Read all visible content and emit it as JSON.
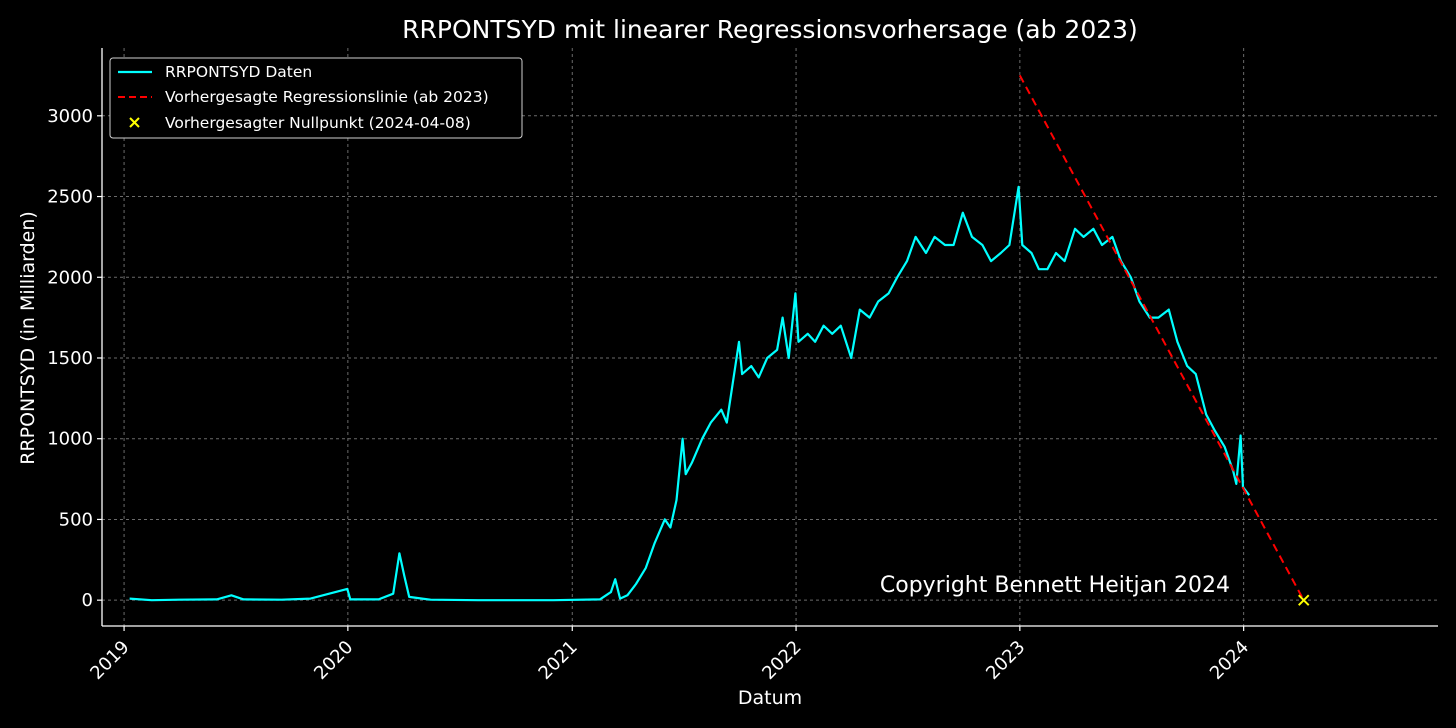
{
  "chart_data": {
    "type": "line",
    "title": "RRPONTSYD mit linearer Regressionsvorhersage (ab 2023)",
    "xlabel": "Datum",
    "ylabel": "RRPONTSYD (in Milliarden)",
    "xlim": [
      "2018-11-26",
      "2024-11-13"
    ],
    "ylim": [
      -160,
      3420
    ],
    "grid": true,
    "xticks": [
      "2019",
      "2020",
      "2021",
      "2022",
      "2023",
      "2024"
    ],
    "yticks": [
      0,
      500,
      1000,
      1500,
      2000,
      2500,
      3000
    ],
    "legend_position": "top-left",
    "series": [
      {
        "name": "RRPONTSYD Daten",
        "style": "line",
        "color": "#00FFFF",
        "points": [
          [
            "2019-01-10",
            10
          ],
          [
            "2019-02-15",
            0
          ],
          [
            "2019-04-01",
            3
          ],
          [
            "2019-06-01",
            5
          ],
          [
            "2019-06-25",
            30
          ],
          [
            "2019-07-15",
            5
          ],
          [
            "2019-09-15",
            3
          ],
          [
            "2019-11-01",
            10
          ],
          [
            "2019-12-31",
            70
          ],
          [
            "2020-01-05",
            5
          ],
          [
            "2020-02-20",
            5
          ],
          [
            "2020-03-15",
            40
          ],
          [
            "2020-03-25",
            290
          ],
          [
            "2020-04-02",
            150
          ],
          [
            "2020-04-10",
            20
          ],
          [
            "2020-05-01",
            10
          ],
          [
            "2020-05-15",
            3
          ],
          [
            "2020-08-01",
            0
          ],
          [
            "2020-12-01",
            0
          ],
          [
            "2021-02-15",
            5
          ],
          [
            "2021-03-05",
            50
          ],
          [
            "2021-03-12",
            130
          ],
          [
            "2021-03-20",
            10
          ],
          [
            "2021-04-01",
            30
          ],
          [
            "2021-04-15",
            100
          ],
          [
            "2021-05-01",
            200
          ],
          [
            "2021-05-15",
            350
          ],
          [
            "2021-06-01",
            500
          ],
          [
            "2021-06-10",
            450
          ],
          [
            "2021-06-20",
            620
          ],
          [
            "2021-06-30",
            1000
          ],
          [
            "2021-07-05",
            780
          ],
          [
            "2021-07-15",
            850
          ],
          [
            "2021-08-01",
            1000
          ],
          [
            "2021-08-15",
            1100
          ],
          [
            "2021-09-01",
            1180
          ],
          [
            "2021-09-10",
            1100
          ],
          [
            "2021-09-20",
            1350
          ],
          [
            "2021-09-30",
            1600
          ],
          [
            "2021-10-05",
            1400
          ],
          [
            "2021-10-20",
            1450
          ],
          [
            "2021-11-01",
            1380
          ],
          [
            "2021-11-15",
            1500
          ],
          [
            "2021-12-01",
            1550
          ],
          [
            "2021-12-10",
            1750
          ],
          [
            "2021-12-20",
            1500
          ],
          [
            "2021-12-31",
            1900
          ],
          [
            "2022-01-05",
            1600
          ],
          [
            "2022-01-20",
            1650
          ],
          [
            "2022-02-01",
            1600
          ],
          [
            "2022-02-15",
            1700
          ],
          [
            "2022-03-01",
            1650
          ],
          [
            "2022-03-15",
            1700
          ],
          [
            "2022-04-01",
            1500
          ],
          [
            "2022-04-15",
            1800
          ],
          [
            "2022-05-01",
            1750
          ],
          [
            "2022-05-15",
            1850
          ],
          [
            "2022-06-01",
            1900
          ],
          [
            "2022-06-15",
            2000
          ],
          [
            "2022-07-01",
            2100
          ],
          [
            "2022-07-15",
            2250
          ],
          [
            "2022-08-01",
            2150
          ],
          [
            "2022-08-15",
            2250
          ],
          [
            "2022-09-01",
            2200
          ],
          [
            "2022-09-15",
            2200
          ],
          [
            "2022-09-30",
            2400
          ],
          [
            "2022-10-15",
            2250
          ],
          [
            "2022-11-01",
            2200
          ],
          [
            "2022-11-15",
            2100
          ],
          [
            "2022-12-01",
            2150
          ],
          [
            "2022-12-15",
            2200
          ],
          [
            "2022-12-30",
            2560
          ],
          [
            "2023-01-05",
            2200
          ],
          [
            "2023-01-20",
            2150
          ],
          [
            "2023-02-01",
            2050
          ],
          [
            "2023-02-15",
            2050
          ],
          [
            "2023-03-01",
            2150
          ],
          [
            "2023-03-15",
            2100
          ],
          [
            "2023-04-01",
            2300
          ],
          [
            "2023-04-15",
            2250
          ],
          [
            "2023-05-01",
            2300
          ],
          [
            "2023-05-15",
            2200
          ],
          [
            "2023-06-01",
            2250
          ],
          [
            "2023-06-15",
            2100
          ],
          [
            "2023-07-01",
            2000
          ],
          [
            "2023-07-15",
            1850
          ],
          [
            "2023-08-01",
            1750
          ],
          [
            "2023-08-15",
            1750
          ],
          [
            "2023-09-01",
            1800
          ],
          [
            "2023-09-15",
            1600
          ],
          [
            "2023-10-01",
            1450
          ],
          [
            "2023-10-15",
            1400
          ],
          [
            "2023-11-01",
            1150
          ],
          [
            "2023-11-15",
            1050
          ],
          [
            "2023-12-01",
            950
          ],
          [
            "2023-12-15",
            800
          ],
          [
            "2023-12-20",
            720
          ],
          [
            "2023-12-27",
            1020
          ],
          [
            "2023-12-31",
            700
          ],
          [
            "2024-01-10",
            650
          ]
        ]
      },
      {
        "name": "Vorhergesagte Regressionslinie (ab 2023)",
        "style": "dashed",
        "color": "#FF0000",
        "points": [
          [
            "2023-01-01",
            3250
          ],
          [
            "2024-04-08",
            0
          ]
        ]
      },
      {
        "name": "Vorhergesagter Nullpunkt (2024-04-08)",
        "style": "marker-x",
        "color": "#FFFF00",
        "points": [
          [
            "2024-04-08",
            0
          ]
        ]
      }
    ],
    "annotations": [
      {
        "text": "Copyright Bennett Heitjan 2024",
        "x": "2023-01-01",
        "y": 100,
        "anchor": "end"
      }
    ]
  }
}
